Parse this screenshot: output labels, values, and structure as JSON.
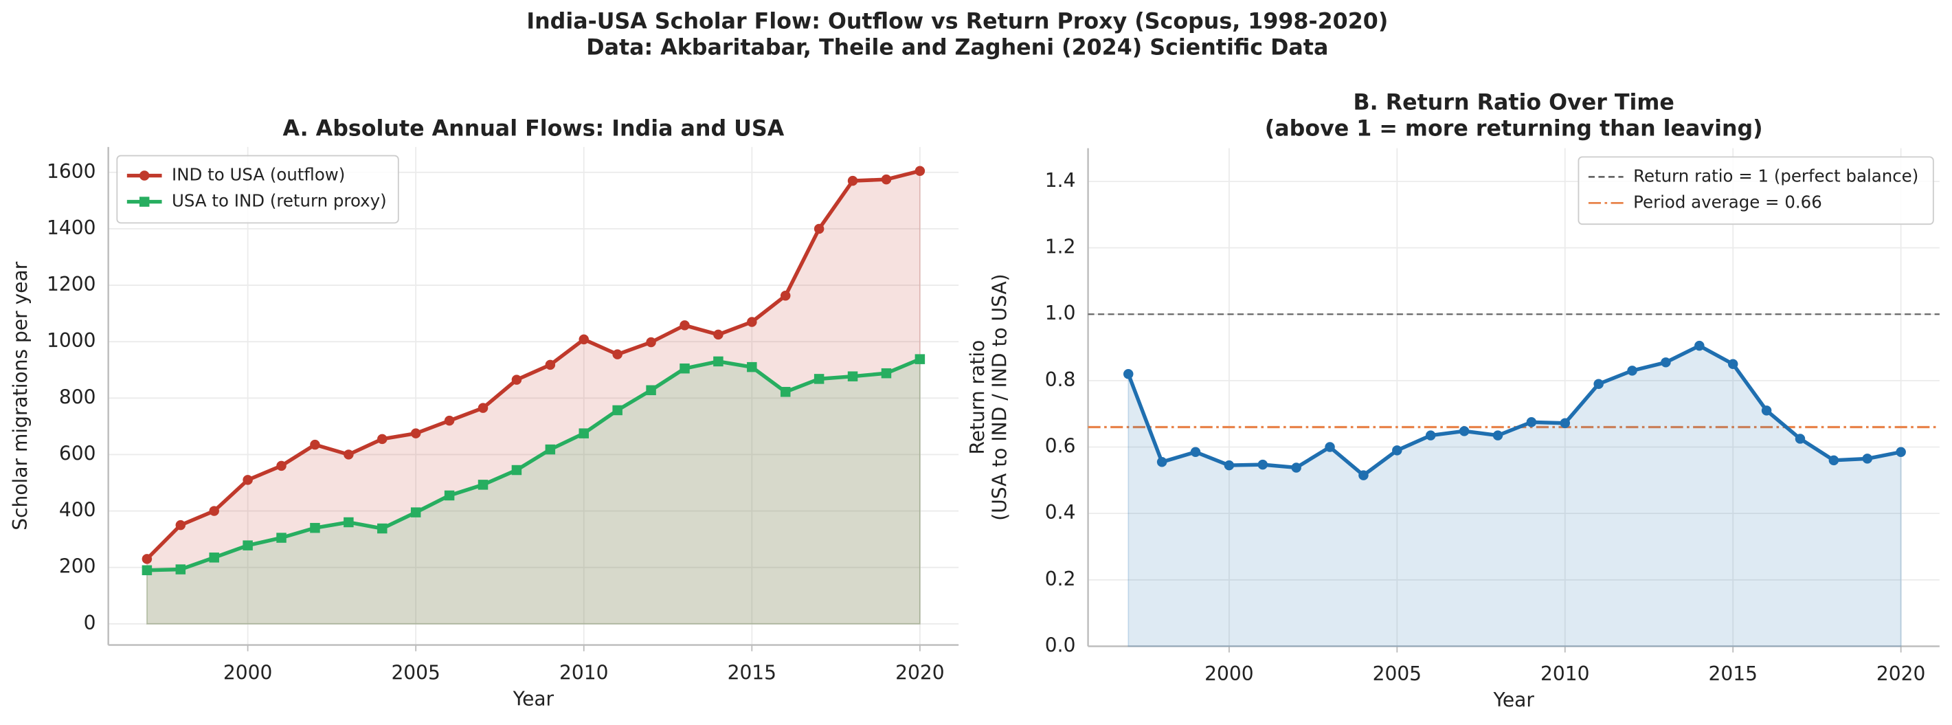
{
  "title": "India-USA Scholar Flow: Outflow vs Return Proxy (Scopus, 1998-2020)",
  "subtitle": "Data: Akbaritabar, Theile and Zagheni (2024) Scientific Data",
  "chart_data": [
    {
      "type": "line",
      "title": "A. Absolute Annual Flows: India and USA",
      "xlabel": "Year",
      "ylabel": [
        "Scholar migrations per year"
      ],
      "x": [
        1997,
        1998,
        1999,
        2000,
        2001,
        2002,
        2003,
        2004,
        2005,
        2006,
        2007,
        2008,
        2009,
        2010,
        2011,
        2012,
        2013,
        2014,
        2015,
        2016,
        2017,
        2018,
        2019,
        2020
      ],
      "series": [
        {
          "name": "IND to USA (outflow)",
          "color": "#c0392b",
          "marker": "circle",
          "fill": true,
          "values": [
            230,
            350,
            400,
            510,
            560,
            635,
            600,
            655,
            675,
            720,
            765,
            865,
            918,
            1008,
            955,
            998,
            1058,
            1025,
            1070,
            1163,
            1400,
            1570,
            1575,
            1605
          ]
        },
        {
          "name": "USA to IND (return proxy)",
          "color": "#27ae60",
          "marker": "square",
          "fill": true,
          "values": [
            190,
            193,
            235,
            278,
            305,
            340,
            360,
            338,
            395,
            455,
            493,
            545,
            618,
            675,
            757,
            828,
            905,
            930,
            910,
            822,
            868,
            877,
            888,
            938
          ]
        }
      ],
      "xlim": [
        1995.85,
        2021.15
      ],
      "xticks": [
        2000,
        2005,
        2010,
        2015,
        2020
      ],
      "ylim": [
        -75,
        1690
      ],
      "yticks": [
        0,
        200,
        400,
        600,
        800,
        1000,
        1200,
        1400,
        1600
      ],
      "grid": true,
      "legend": "upper left"
    },
    {
      "type": "line",
      "title": "B. Return Ratio Over Time",
      "subtitle": "(above 1 = more returning than leaving)",
      "xlabel": "Year",
      "ylabel": [
        "Return ratio",
        "(USA to IND / IND to USA)"
      ],
      "x": [
        1997,
        1998,
        1999,
        2000,
        2001,
        2002,
        2003,
        2004,
        2005,
        2006,
        2007,
        2008,
        2009,
        2010,
        2011,
        2012,
        2013,
        2014,
        2015,
        2016,
        2017,
        2018,
        2019,
        2020
      ],
      "series": [
        {
          "color": "#1f6fb0",
          "marker": "circle",
          "fill": true,
          "values": [
            0.82,
            0.555,
            0.585,
            0.545,
            0.547,
            0.538,
            0.6,
            0.515,
            0.59,
            0.635,
            0.648,
            0.635,
            0.675,
            0.672,
            0.79,
            0.83,
            0.855,
            0.905,
            0.85,
            0.71,
            0.625,
            0.56,
            0.565,
            0.585
          ]
        }
      ],
      "reference_lines": [
        {
          "name": "Return ratio = 1 (perfect balance)",
          "value": 1,
          "color": "#666666",
          "dash": "dashed"
        },
        {
          "name": "Period average = 0.66",
          "value": 0.66,
          "color": "#e8834a",
          "dash": "dashdot"
        }
      ],
      "xlim": [
        1995.8,
        2021.15
      ],
      "xticks": [
        2000,
        2005,
        2010,
        2015,
        2020
      ],
      "ylim": [
        0,
        1.5
      ],
      "yticks": [
        {
          "value": 0,
          "label": "0.0"
        },
        0.2,
        0.4,
        0.6,
        0.8,
        {
          "value": 1,
          "label": "1.0"
        },
        1.2,
        1.4
      ],
      "grid": true,
      "legend": "upper right"
    }
  ]
}
